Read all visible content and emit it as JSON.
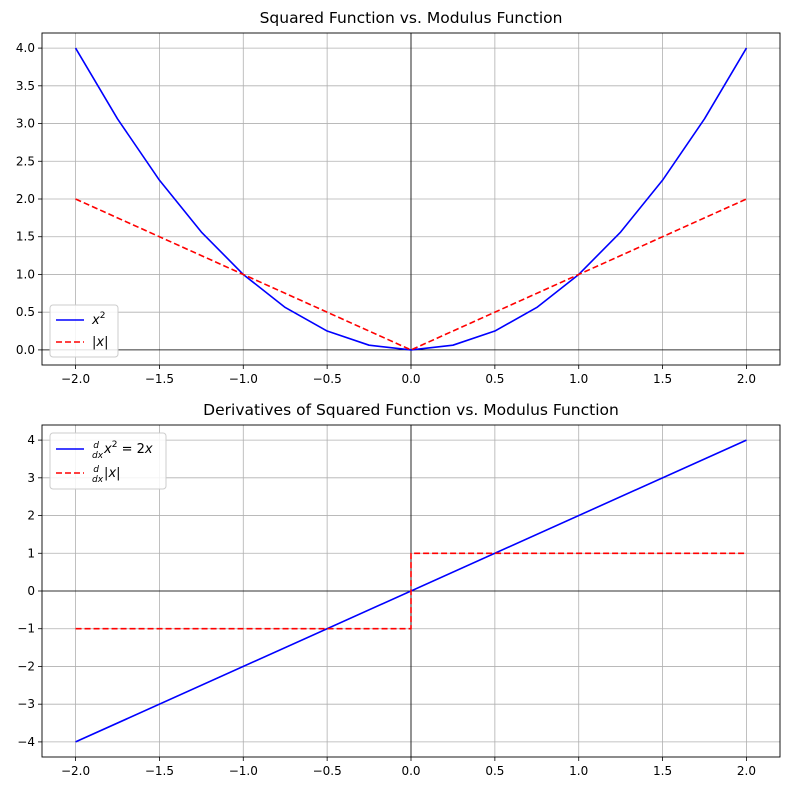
{
  "chart_data": [
    {
      "type": "line",
      "title": "Squared Function vs. Modulus Function",
      "xlabel": "",
      "ylabel": "",
      "xlim": [
        -2.2,
        2.2
      ],
      "ylim": [
        -0.2,
        4.2
      ],
      "xticks": [
        -2.0,
        -1.5,
        -1.0,
        -0.5,
        0.0,
        0.5,
        1.0,
        1.5,
        2.0
      ],
      "xtick_labels": [
        "−2.0",
        "−1.5",
        "−1.0",
        "−0.5",
        "0.0",
        "0.5",
        "1.0",
        "1.5",
        "2.0"
      ],
      "yticks": [
        0.0,
        0.5,
        1.0,
        1.5,
        2.0,
        2.5,
        3.0,
        3.5,
        4.0
      ],
      "ytick_labels": [
        "0.0",
        "0.5",
        "1.0",
        "1.5",
        "2.0",
        "2.5",
        "3.0",
        "3.5",
        "4.0"
      ],
      "grid": true,
      "legend_position": "lower-left",
      "series": [
        {
          "name": "x^2",
          "color": "#0000ff",
          "style": "solid",
          "x": [
            -2.0,
            -1.75,
            -1.5,
            -1.25,
            -1.0,
            -0.75,
            -0.5,
            -0.25,
            0.0,
            0.25,
            0.5,
            0.75,
            1.0,
            1.25,
            1.5,
            1.75,
            2.0
          ],
          "y": [
            4.0,
            3.0625,
            2.25,
            1.5625,
            1.0,
            0.5625,
            0.25,
            0.0625,
            0.0,
            0.0625,
            0.25,
            0.5625,
            1.0,
            1.5625,
            2.25,
            3.0625,
            4.0
          ]
        },
        {
          "name": "|x|",
          "color": "#ff0000",
          "style": "dashed",
          "x": [
            -2.0,
            0.0,
            2.0
          ],
          "y": [
            2.0,
            0.0,
            2.0
          ]
        }
      ]
    },
    {
      "type": "line",
      "title": "Derivatives of Squared Function vs. Modulus Function",
      "xlabel": "",
      "ylabel": "",
      "xlim": [
        -2.2,
        2.2
      ],
      "ylim": [
        -4.4,
        4.4
      ],
      "xticks": [
        -2.0,
        -1.5,
        -1.0,
        -0.5,
        0.0,
        0.5,
        1.0,
        1.5,
        2.0
      ],
      "xtick_labels": [
        "−2.0",
        "−1.5",
        "−1.0",
        "−0.5",
        "0.0",
        "0.5",
        "1.0",
        "1.5",
        "2.0"
      ],
      "yticks": [
        -4,
        -3,
        -2,
        -1,
        0,
        1,
        2,
        3,
        4
      ],
      "ytick_labels": [
        "−4",
        "−3",
        "−2",
        "−1",
        "0",
        "1",
        "2",
        "3",
        "4"
      ],
      "grid": true,
      "legend_position": "upper-left",
      "series": [
        {
          "name": "d/dx x^2 = 2x",
          "color": "#0000ff",
          "style": "solid",
          "x": [
            -2.0,
            2.0
          ],
          "y": [
            -4.0,
            4.0
          ]
        },
        {
          "name": "d/dx |x|",
          "color": "#ff0000",
          "style": "dashed",
          "x": [
            -2.0,
            0.0,
            0.0,
            2.0
          ],
          "y": [
            -1.0,
            -1.0,
            1.0,
            1.0
          ]
        }
      ]
    }
  ]
}
